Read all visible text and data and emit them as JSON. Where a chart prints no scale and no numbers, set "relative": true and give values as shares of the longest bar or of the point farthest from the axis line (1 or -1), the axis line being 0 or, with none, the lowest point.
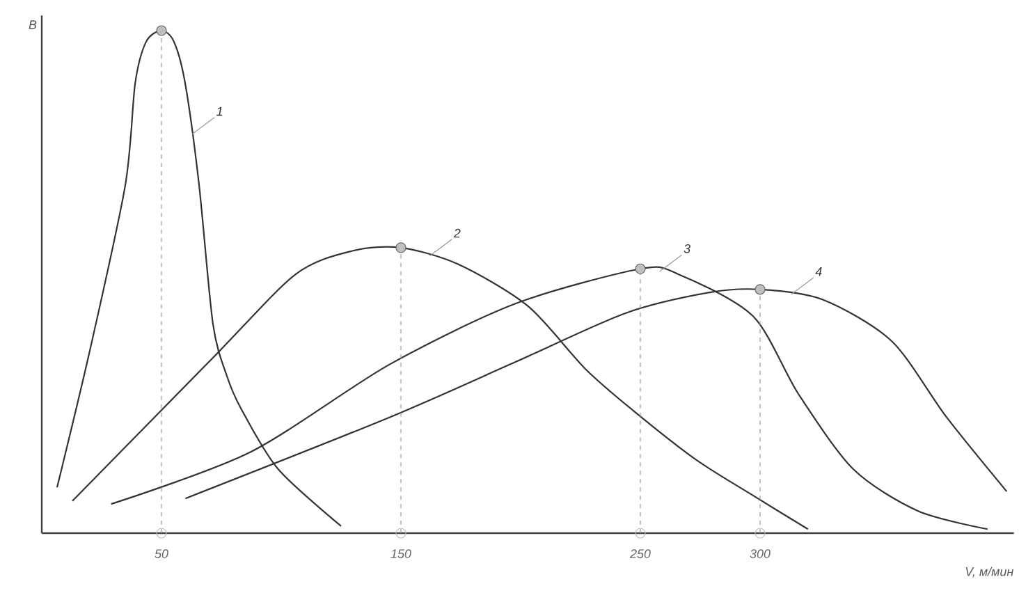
{
  "chart_data": {
    "type": "line",
    "relative": true,
    "ylabel": "B",
    "xlabel": "V, м/мин",
    "xlim": [
      0,
      406
    ],
    "xticks": [
      50,
      150,
      250,
      300
    ],
    "line_style": "solid",
    "marker": "none",
    "grid": false,
    "ref_lines": [
      {
        "axis": "x",
        "value": 50,
        "color": "#999999",
        "line_style": "dashed"
      },
      {
        "axis": "x",
        "value": 150,
        "color": "#999999",
        "line_style": "dashed"
      },
      {
        "axis": "x",
        "value": 250,
        "color": "#999999",
        "line_style": "dashed"
      },
      {
        "axis": "x",
        "value": 300,
        "color": "#999999",
        "line_style": "dashed"
      }
    ],
    "series": [
      {
        "name": "1",
        "color": "#333333",
        "x": [
          6.4,
          20.3,
          34.9,
          39,
          43.6,
          50,
          55.2,
          59.9,
          65.7,
          71.5,
          77.3,
          83.1,
          98.8,
          125
        ],
        "values": [
          0.091,
          0.368,
          0.693,
          0.895,
          0.978,
          1.0,
          0.978,
          0.895,
          0.693,
          0.416,
          0.313,
          0.249,
          0.127,
          0.014
        ]
      },
      {
        "name": "2",
        "color": "#333333",
        "x": [
          12.8,
          71.5,
          106,
          130,
          150,
          174,
          203,
          227,
          247,
          273,
          296,
          320
        ],
        "values": [
          0.064,
          0.349,
          0.515,
          0.562,
          0.568,
          0.535,
          0.452,
          0.327,
          0.244,
          0.147,
          0.078,
          0.008
        ]
      },
      {
        "name": "3",
        "color": "#333333",
        "x": [
          29,
          87,
          145,
          198,
          250,
          266,
          297,
          316,
          339,
          366,
          395
        ],
        "values": [
          0.058,
          0.161,
          0.335,
          0.457,
          0.526,
          0.515,
          0.432,
          0.277,
          0.127,
          0.044,
          0.008
        ]
      },
      {
        "type": "scatter",
        "marker": "circle",
        "color": "#bfbfbf",
        "x": [
          50,
          150,
          250,
          300
        ],
        "values": [
          0,
          0,
          0,
          0
        ]
      },
      {
        "name": "4",
        "color": "#333333",
        "x": [
          60,
          145,
          198,
          244,
          279,
          300,
          326,
          355,
          378,
          403
        ],
        "values": [
          0.069,
          0.23,
          0.341,
          0.438,
          0.479,
          0.485,
          0.465,
          0.382,
          0.23,
          0.083
        ]
      }
    ]
  }
}
